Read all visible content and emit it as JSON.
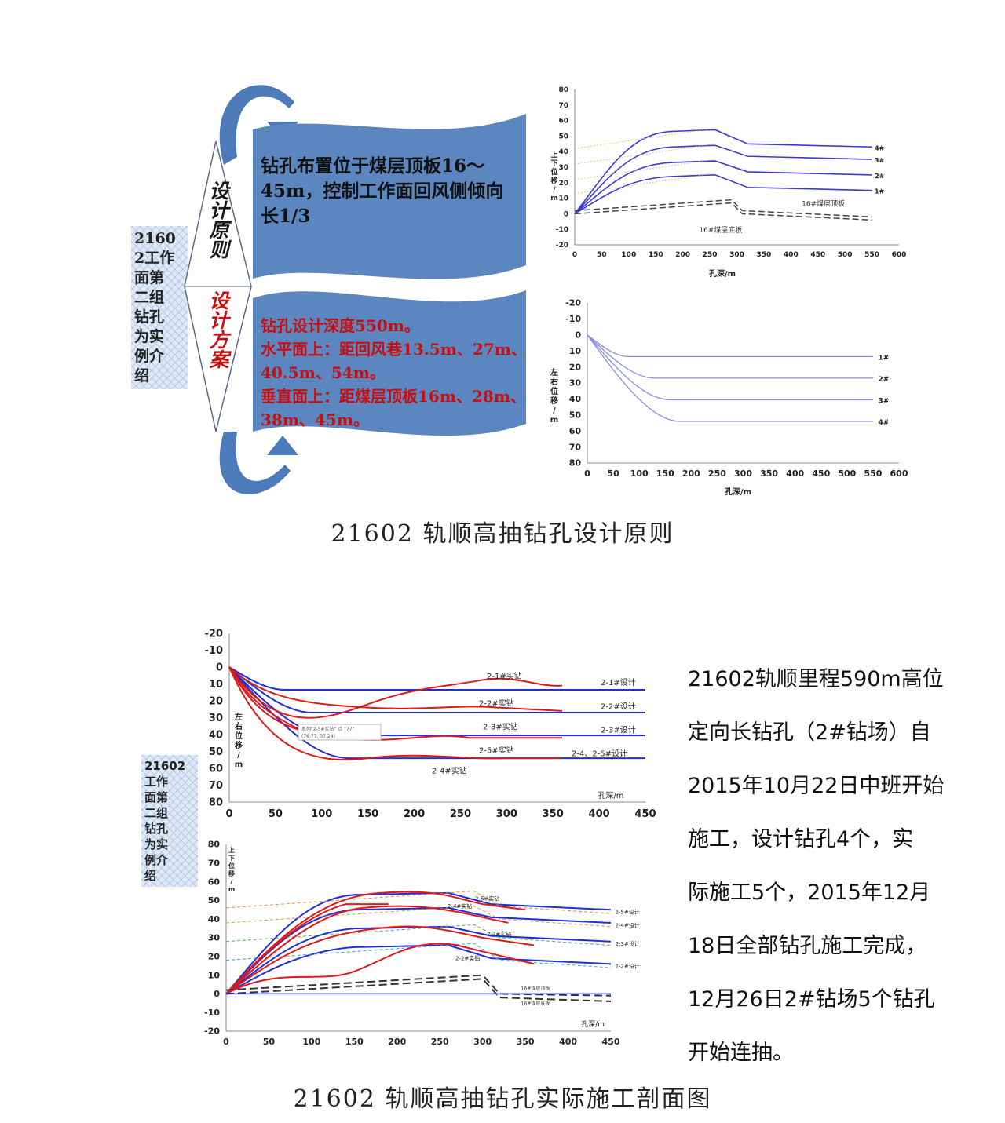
{
  "section1": {
    "caption": "21602 轨顺高抽钻孔设计原则",
    "sidebox_text": "2160\n2工作\n面第\n二组\n钻孔\n为实\n例介\n绍",
    "principle_label": "设计原则",
    "scheme_label": "设计方案",
    "principle_text": "钻孔布置位于煤层顶板16～45m，控制工作面回风侧倾向长1/3",
    "scheme_lines": [
      "钻孔设计深度550m。",
      "水平面上：距回风巷13.5m、27m、40.5m、54m。",
      "垂直面上：距煤层顶板16m、28m、38m、45m。"
    ],
    "chart_top": {
      "ylabel": "上下位移/m",
      "xlabel": "孔深/m",
      "xticks": [
        "0",
        "50",
        "100",
        "150",
        "200",
        "250",
        "300",
        "350",
        "400",
        "450",
        "500",
        "550",
        "600"
      ],
      "yticks": [
        "80",
        "70",
        "60",
        "50",
        "40",
        "30",
        "20",
        "10",
        "0",
        "-10",
        "-20"
      ],
      "series_labels": [
        "4#",
        "3#",
        "2#",
        "1#"
      ],
      "seam_labels": [
        "16#煤层顶板",
        "16#煤层底板"
      ]
    },
    "chart_bottom": {
      "ylabel": "左右位移/m",
      "xlabel": "孔深/m",
      "xticks": [
        "0",
        "50",
        "100",
        "150",
        "200",
        "250",
        "300",
        "350",
        "400",
        "450",
        "500",
        "550",
        "600"
      ],
      "yticks": [
        "-20",
        "-10",
        "0",
        "10",
        "20",
        "30",
        "40",
        "50",
        "60",
        "70",
        "80"
      ],
      "series_labels": [
        "1#",
        "2#",
        "3#",
        "4#"
      ]
    }
  },
  "section2": {
    "caption": "21602 轨顺高抽钻孔实际施工剖面图",
    "sidebox_text": "21602\n工作\n面第\n二组\n钻孔\n为实\n例介\n绍",
    "description": "21602轨顺里程590m高位定向长钻孔（2#钻场）自2015年10月22日中班开始施工，设计钻孔4个，实际施工5个，2015年12月18日全部钻孔施工完成，12月26日2#钻场5个钻孔开始连抽。",
    "description_lines": [
      "21602轨顺里程590m高位",
      "定向长钻孔（2#钻场）自",
      "2015年10月22日中班开始",
      "施工，设计钻孔4个，实",
      "际施工5个，2015年12月",
      "18日全部钻孔施工完成，",
      "12月26日2#钻场5个钻孔",
      "开始连抽。"
    ],
    "chart_top": {
      "ylabel": "左右位移/m",
      "xlabel": "孔深/m",
      "xticks": [
        "0",
        "50",
        "100",
        "150",
        "200",
        "250",
        "300",
        "350",
        "400",
        "450"
      ],
      "yticks": [
        "-20",
        "-10",
        "0",
        "10",
        "20",
        "30",
        "40",
        "50",
        "60",
        "70",
        "80"
      ],
      "actual_labels": [
        "2-1#实钻",
        "2-2#实钻",
        "2-3#实钻",
        "2-5#实钻",
        "2-4#实钻"
      ],
      "design_labels": [
        "2-1#设计",
        "2-2#设计",
        "2-3#设计",
        "2-4、2-5#设计"
      ],
      "tooltip_line1": "系列\"2-5#实钻\" 点 \"77\"",
      "tooltip_line2": "(76.77, 37.24)"
    },
    "chart_bottom": {
      "ylabel": "上下位移/m",
      "xlabel": "孔深/m",
      "xticks": [
        "0",
        "50",
        "100",
        "150",
        "200",
        "250",
        "300",
        "350",
        "400",
        "450"
      ],
      "yticks": [
        "80",
        "70",
        "60",
        "50",
        "40",
        "30",
        "20",
        "10",
        "0",
        "-10",
        "-20"
      ],
      "actual_labels": [
        "2-5#实钻",
        "2-4#实钻",
        "2-3#实钻",
        "2-2#实钻"
      ],
      "design_labels": [
        "2-5#设计",
        "2-4#设计",
        "2-3#设计",
        "2-2#设计"
      ],
      "seam_labels": [
        "16#煤层顶板",
        "16#煤层底板"
      ]
    }
  },
  "colors": {
    "blue_design": "#1f2fd8",
    "red_actual": "#e01818",
    "banner_blue": "#5b86c0",
    "banner_dark": "#3a6aa8",
    "light_series": "#8a8ee0"
  }
}
